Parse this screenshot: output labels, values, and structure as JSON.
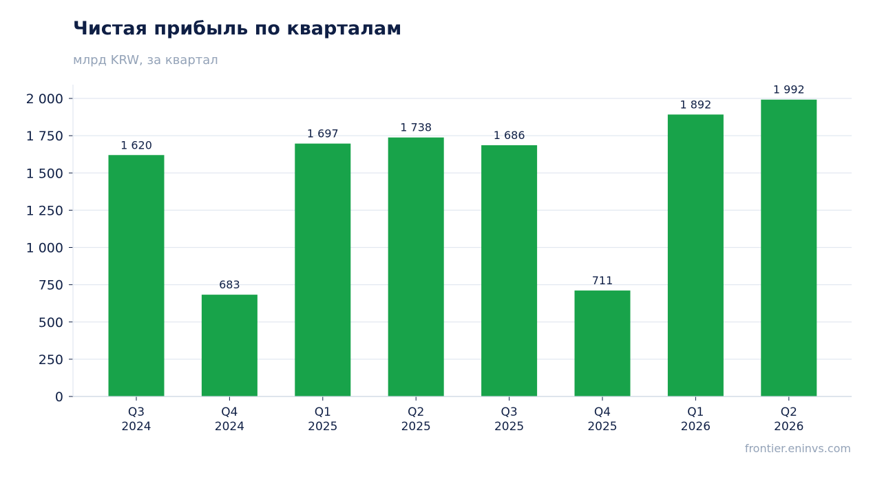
{
  "title": "Чистая прибыль по кварталам",
  "subtitle": "млрд KRW, за квартал",
  "source": "frontier.eninvs.com",
  "colors": {
    "bar": "#18a34a",
    "grid": "#e2e8f0",
    "axis": "#cbd5e1",
    "text": "#0f1f45",
    "muted": "#94a3b8"
  },
  "chart_data": {
    "type": "bar",
    "categories": [
      [
        "Q3",
        "2024"
      ],
      [
        "Q4",
        "2024"
      ],
      [
        "Q1",
        "2025"
      ],
      [
        "Q2",
        "2025"
      ],
      [
        "Q3",
        "2025"
      ],
      [
        "Q4",
        "2025"
      ],
      [
        "Q1",
        "2026"
      ],
      [
        "Q2",
        "2026"
      ]
    ],
    "values": [
      1620,
      683,
      1697,
      1738,
      1686,
      711,
      1892,
      1992
    ],
    "value_labels": [
      "1 620",
      "683",
      "1 697",
      "1 738",
      "1 686",
      "711",
      "1 892",
      "1 992"
    ],
    "yticks": [
      0,
      250,
      500,
      750,
      1000,
      1250,
      1500,
      1750,
      2000
    ],
    "ytick_labels": [
      "0",
      "250",
      "500",
      "750",
      "1 000",
      "1 250",
      "1 500",
      "1 750",
      "2 000"
    ],
    "ylim": [
      0,
      2000
    ],
    "grid": true,
    "legend": "none"
  }
}
